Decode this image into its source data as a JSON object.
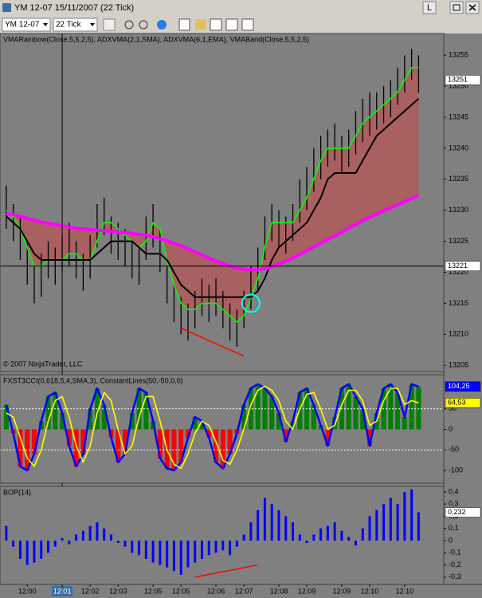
{
  "window": {
    "title": "YM 12-07  15/11/2007  (22 Tick)",
    "instrument": "YM 12-07",
    "period": "22 Tick",
    "button": "L"
  },
  "chart_data": [
    {
      "type": "ohlc",
      "title": "VMARainbow(Close,5,5,2,5), ADXVMA(2,1,SMA), ADXVMA(6,1,EMA), VMABand(Close,5,5,2,5)",
      "note": "© 2007 NinjaTrader, LLC",
      "background": "#808080",
      "xlim": [
        -0.9,
        62.6
      ],
      "ylim": [
        13204,
        13258.5
      ],
      "yticks": [
        13205,
        13210,
        13215,
        13220,
        13225,
        13230,
        13235,
        13240,
        13245,
        13250,
        13255
      ],
      "x": [
        0,
        1,
        2,
        3,
        4,
        5,
        6,
        7,
        8,
        9,
        10,
        11,
        12,
        13,
        14,
        15,
        16,
        17,
        18,
        19,
        20,
        21,
        22,
        23,
        24,
        25,
        26,
        27,
        28,
        29,
        30,
        31,
        32,
        33,
        34,
        35,
        36,
        37,
        38,
        39,
        40,
        41,
        42,
        43,
        44,
        45,
        46,
        47,
        48,
        49,
        50,
        51,
        52,
        53,
        54,
        55,
        56,
        57,
        58,
        59
      ],
      "high": [
        13234,
        13231,
        13229,
        13225,
        13221,
        13223,
        13225,
        13224,
        13226,
        13228,
        13225,
        13223,
        13226,
        13231,
        13232,
        13229,
        13228,
        13227,
        13225,
        13224,
        13229,
        13231,
        13227,
        13221,
        13218,
        13216,
        13215,
        13217,
        13219,
        13218,
        13219,
        13217,
        13215,
        13214,
        13217,
        13221,
        13224,
        13229,
        13231,
        13230,
        13229,
        13231,
        13235,
        13237,
        13240,
        13242,
        13243,
        13244,
        13242,
        13243,
        13246,
        13248,
        13249,
        13249,
        13250,
        13251,
        13253,
        13255,
        13256,
        13255
      ],
      "low": [
        13227,
        13225,
        13222,
        13218,
        13215,
        13216,
        13219,
        13218,
        13220,
        13221,
        13219,
        13217,
        13219,
        13224,
        13226,
        13223,
        13222,
        13221,
        13219,
        13218,
        13222,
        13224,
        13220,
        13215,
        13212,
        13210,
        13209,
        13211,
        13213,
        13212,
        13213,
        13211,
        13209,
        13208,
        13211,
        13214,
        13217,
        13222,
        13225,
        13224,
        13223,
        13225,
        13228,
        13230,
        13233,
        13235,
        13237,
        13238,
        13236,
        13237,
        13239,
        13241,
        13242,
        13243,
        13244,
        13245,
        13247,
        13249,
        13251,
        13249
      ],
      "bar_color": "#000000",
      "lines": [
        {
          "color": "#00ff00",
          "width": 1.6,
          "values": [
            13230,
            13229,
            13227,
            13224,
            13221,
            13221,
            13222,
            13222,
            13222,
            13223,
            13223,
            13222,
            13222,
            13225,
            13228,
            13228,
            13227,
            13226,
            13225,
            13224,
            13225,
            13228,
            13227,
            13222,
            13218,
            13215,
            13214,
            13214,
            13215,
            13215,
            13215,
            13214,
            13213,
            13212,
            13213,
            13216,
            13219,
            13224,
            13228,
            13228,
            13228,
            13228,
            13230,
            13232,
            13235,
            13238,
            13240,
            13240,
            13240,
            13240,
            13242,
            13244,
            13245,
            13246,
            13247,
            13248,
            13249,
            13251,
            13253,
            13253
          ]
        },
        {
          "color": "#000000",
          "width": 2,
          "values": [
            13229,
            13228,
            13227,
            13225,
            13223,
            13222,
            13222,
            13222,
            13222,
            13222,
            13222,
            13222,
            13222,
            13223,
            13224,
            13225,
            13225,
            13225,
            13225,
            13224,
            13223,
            13223,
            13223,
            13222,
            13220,
            13218,
            13217,
            13216,
            13216,
            13216,
            13216,
            13216,
            13216,
            13216,
            13216,
            13216,
            13217,
            13219,
            13222,
            13224,
            13225,
            13226,
            13227,
            13228,
            13230,
            13232,
            13235,
            13236,
            13236,
            13236,
            13236,
            13238,
            13240,
            13242,
            13243,
            13244,
            13245,
            13246,
            13247,
            13248
          ]
        },
        {
          "color": "#ff00ff",
          "width": 4,
          "values": [
            13229.5,
            13229.3,
            13229,
            13228.7,
            13228.4,
            13228.1,
            13227.9,
            13227.7,
            13227.5,
            13227.3,
            13227.1,
            13227,
            13226.9,
            13226.8,
            13226.7,
            13226.6,
            13226.5,
            13226.4,
            13226.3,
            13226.1,
            13226,
            13225.7,
            13225.4,
            13225.1,
            13224.7,
            13224.3,
            13223.8,
            13223.3,
            13222.8,
            13222.3,
            13221.8,
            13221.4,
            13221,
            13220.7,
            13220.5,
            13220.4,
            13220.4,
            13220.6,
            13220.9,
            13221.3,
            13221.8,
            13222.3,
            13222.9,
            13223.5,
            13224.1,
            13224.7,
            13225.3,
            13225.9,
            13226.5,
            13227.1,
            13227.7,
            13228.3,
            13228.9,
            13229.4,
            13229.9,
            13230.4,
            13230.9,
            13231.4,
            13231.9,
            13232.4
          ]
        }
      ],
      "band_between": [
        0,
        2
      ],
      "band_color": "rgba(200,70,70,0.55)",
      "trendlines": [
        {
          "x": [
            25,
            34
          ],
          "y": [
            13211,
            13206.5
          ],
          "color": "#ff0000"
        }
      ],
      "circle": {
        "x": 35,
        "y": 13215,
        "color": "#00ffff"
      },
      "last_price": 13251,
      "crosshair": {
        "x": 8,
        "y": 13221
      }
    },
    {
      "type": "oscillator",
      "title": "FXST3CCI(0,618,5,4,SMA,3), ConstantLines(50,-50,0,0)",
      "background": "#808080",
      "xlim": [
        -0.9,
        62.6
      ],
      "ylim": [
        -131,
        133
      ],
      "yticks": [
        50,
        0,
        -50,
        -100
      ],
      "constant_lines": [
        50,
        -50
      ],
      "constant_color": "#ffffff",
      "histogram_of": 0,
      "positive_color": "#008000",
      "negative_color": "#ff0000",
      "x": [
        0,
        1,
        2,
        3,
        4,
        5,
        6,
        7,
        8,
        9,
        10,
        11,
        12,
        13,
        14,
        15,
        16,
        17,
        18,
        19,
        20,
        21,
        22,
        23,
        24,
        25,
        26,
        27,
        28,
        29,
        30,
        31,
        32,
        33,
        34,
        35,
        36,
        37,
        38,
        39,
        40,
        41,
        42,
        43,
        44,
        45,
        46,
        47,
        48,
        49,
        50,
        51,
        52,
        53,
        54,
        55,
        56,
        57,
        58,
        59
      ],
      "series": [
        {
          "color": "#0000ff",
          "width": 2.5,
          "values": [
            60,
            -10,
            -90,
            -100,
            -60,
            20,
            80,
            90,
            40,
            -40,
            -90,
            -60,
            50,
            100,
            60,
            -20,
            -80,
            -60,
            40,
            100,
            90,
            20,
            -70,
            -95,
            -100,
            -80,
            -20,
            30,
            20,
            -20,
            -80,
            -95,
            -60,
            -10,
            60,
            100,
            110,
            100,
            80,
            40,
            -30,
            20,
            90,
            100,
            60,
            10,
            -40,
            30,
            100,
            110,
            80,
            50,
            -40,
            40,
            100,
            110,
            90,
            30,
            110,
            104.25
          ],
          "value_labels": [
            null,
            null,
            null,
            null,
            null,
            null,
            null,
            null,
            null,
            null,
            null,
            null,
            null,
            null,
            null,
            null,
            null,
            null,
            null,
            null,
            null,
            null,
            null,
            null,
            null,
            null,
            null,
            null,
            null,
            null,
            null,
            null,
            null,
            null,
            null,
            null,
            null,
            null,
            null,
            null,
            null,
            null,
            null,
            null,
            null,
            null,
            null,
            null,
            null,
            null,
            null,
            null,
            null,
            null,
            null,
            null,
            null,
            null,
            null,
            "104,25"
          ]
        },
        {
          "color": "#ffff00",
          "width": 1.6,
          "values": [
            40,
            30,
            -20,
            -70,
            -90,
            -50,
            20,
            70,
            80,
            30,
            -40,
            -80,
            -40,
            40,
            90,
            70,
            0,
            -60,
            -40,
            30,
            80,
            80,
            20,
            -50,
            -85,
            -95,
            -60,
            -10,
            20,
            10,
            -30,
            -75,
            -85,
            -50,
            0,
            60,
            95,
            105,
            95,
            70,
            20,
            0,
            50,
            85,
            90,
            50,
            0,
            10,
            60,
            95,
            95,
            70,
            10,
            20,
            70,
            100,
            100,
            60,
            70,
            64.53
          ],
          "value_labels": [
            null,
            null,
            null,
            null,
            null,
            null,
            null,
            null,
            null,
            null,
            null,
            null,
            null,
            null,
            null,
            null,
            null,
            null,
            null,
            null,
            null,
            null,
            null,
            null,
            null,
            null,
            null,
            null,
            null,
            null,
            null,
            null,
            null,
            null,
            null,
            null,
            null,
            null,
            null,
            null,
            null,
            null,
            null,
            null,
            null,
            null,
            null,
            null,
            null,
            null,
            null,
            null,
            null,
            null,
            null,
            null,
            null,
            null,
            null,
            "64,53"
          ]
        }
      ]
    },
    {
      "type": "bar",
      "title": "BOP(14)",
      "background": "#808080",
      "color": "#0000ff",
      "xlim": [
        -0.9,
        62.6
      ],
      "ylim": [
        -0.36,
        0.445
      ],
      "yticks": [
        {
          "value": 0.4,
          "label": "0,4"
        },
        {
          "value": 0.3,
          "label": "0,3"
        },
        {
          "value": 0.2,
          "label": "0,2"
        },
        {
          "value": 0.1,
          "label": "0,1"
        },
        0,
        {
          "value": -0.1,
          "label": "-0,1"
        },
        {
          "value": -0.2,
          "label": "-0,2"
        },
        {
          "value": -0.3,
          "label": "-0,3"
        }
      ],
      "x": [
        0,
        1,
        2,
        3,
        4,
        5,
        6,
        7,
        8,
        9,
        10,
        11,
        12,
        13,
        14,
        15,
        16,
        17,
        18,
        19,
        20,
        21,
        22,
        23,
        24,
        25,
        26,
        27,
        28,
        29,
        30,
        31,
        32,
        33,
        34,
        35,
        36,
        37,
        38,
        39,
        40,
        41,
        42,
        43,
        44,
        45,
        46,
        47,
        48,
        49,
        50,
        51,
        52,
        53,
        54,
        55,
        56,
        57,
        58,
        59
      ],
      "values": [
        0.12,
        -0.05,
        -0.15,
        -0.2,
        -0.18,
        -0.15,
        -0.1,
        -0.05,
        0.02,
        -0.03,
        0.05,
        0.08,
        0.12,
        0.15,
        0.1,
        0.05,
        -0.02,
        -0.05,
        -0.1,
        -0.12,
        -0.15,
        -0.18,
        -0.2,
        -0.22,
        -0.25,
        -0.28,
        -0.22,
        -0.18,
        -0.15,
        -0.12,
        -0.1,
        -0.08,
        -0.12,
        -0.05,
        0.05,
        0.15,
        0.25,
        0.35,
        0.3,
        0.25,
        0.2,
        0.15,
        0.05,
        -0.02,
        0.05,
        0.1,
        0.12,
        0.15,
        0.08,
        0.03,
        -0.04,
        0.1,
        0.2,
        0.25,
        0.3,
        0.35,
        0.3,
        0.4,
        0.42,
        0.232
      ],
      "value_labels": [
        null,
        null,
        null,
        null,
        null,
        null,
        null,
        null,
        null,
        null,
        null,
        null,
        null,
        null,
        null,
        null,
        null,
        null,
        null,
        null,
        null,
        null,
        null,
        null,
        null,
        null,
        null,
        null,
        null,
        null,
        null,
        null,
        null,
        null,
        null,
        null,
        null,
        null,
        null,
        null,
        null,
        null,
        null,
        null,
        null,
        null,
        null,
        null,
        null,
        null,
        null,
        null,
        null,
        null,
        null,
        null,
        null,
        null,
        null,
        "0,232"
      ],
      "trendlines": [
        {
          "x": [
            27,
            36
          ],
          "y": [
            -0.3,
            -0.2
          ],
          "color": "#ff0000"
        }
      ],
      "xticks": [
        {
          "value": 3,
          "label": "12:00"
        },
        {
          "value": 8,
          "label": "12:01"
        },
        {
          "value": 12,
          "label": "12:02"
        },
        {
          "value": 16,
          "label": "12:03"
        },
        {
          "value": 21,
          "label": "12:05"
        },
        {
          "value": 25,
          "label": "12:05"
        },
        {
          "value": 30,
          "label": "12:06"
        },
        {
          "value": 34,
          "label": "12:07"
        },
        {
          "value": 39,
          "label": "12:08"
        },
        {
          "value": 43,
          "label": "12:09"
        },
        {
          "value": 48,
          "label": "12:09"
        },
        {
          "value": 52,
          "label": "12:10"
        },
        {
          "value": 57,
          "label": "12:10"
        }
      ]
    }
  ]
}
